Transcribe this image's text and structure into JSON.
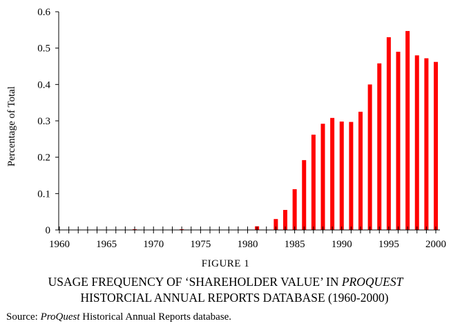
{
  "chart_data": {
    "type": "bar",
    "ylabel": "Percentage of Total",
    "xlabel": "",
    "ylim": [
      0,
      0.6
    ],
    "yticks": [
      "0",
      "0.1",
      "0.2",
      "0.3",
      "0.4",
      "0.5",
      "0.6"
    ],
    "xlim": [
      1960,
      2000
    ],
    "xticks": [
      "1960",
      "1965",
      "1970",
      "1975",
      "1980",
      "1985",
      "1990",
      "1995",
      "2000"
    ],
    "bar_color": "#ff0000",
    "grid": false,
    "legend": "none",
    "x": [
      1960,
      1961,
      1962,
      1963,
      1964,
      1965,
      1966,
      1967,
      1968,
      1969,
      1970,
      1971,
      1972,
      1973,
      1974,
      1975,
      1976,
      1977,
      1978,
      1979,
      1980,
      1981,
      1982,
      1983,
      1984,
      1985,
      1986,
      1987,
      1988,
      1989,
      1990,
      1991,
      1992,
      1993,
      1994,
      1995,
      1996,
      1997,
      1998,
      1999,
      2000
    ],
    "values": [
      0,
      0,
      0,
      0,
      0,
      0,
      0,
      0,
      0.002,
      0,
      0,
      0,
      0,
      0.002,
      0,
      0,
      0,
      0,
      0,
      0,
      0,
      0.01,
      0,
      0.03,
      0.055,
      0.112,
      0.192,
      0.262,
      0.292,
      0.308,
      0.298,
      0.297,
      0.325,
      0.4,
      0.458,
      0.53,
      0.49,
      0.547,
      0.48,
      0.472,
      0.462
    ]
  },
  "caption": {
    "figure_label": "FIGURE 1",
    "title_line1_pre": "USAGE FREQUENCY OF ‘SHAREHOLDER VALUE’ IN ",
    "title_line1_italic": "PROQUEST",
    "title_line2": "HISTORCIAL ANNUAL REPORTS DATABASE (1960-2000)"
  },
  "source": {
    "prefix": "Source: ",
    "italic": "ProQuest",
    "rest": " Historical Annual Reports database."
  }
}
